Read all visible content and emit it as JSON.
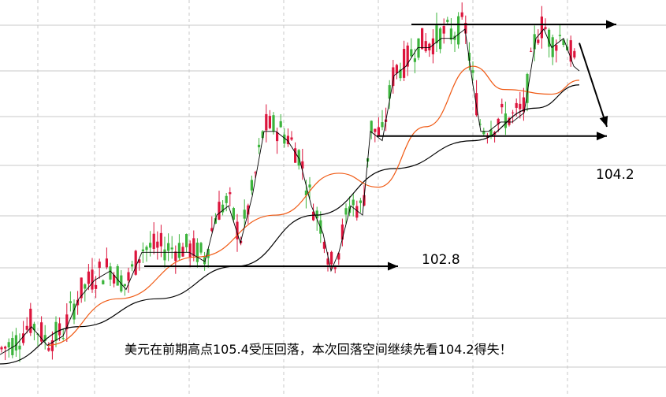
{
  "chart_data": {
    "type": "candlestick",
    "title": "",
    "xlabel": "",
    "ylabel": "",
    "ylim": [
      101.5,
      106.0
    ],
    "grid": true,
    "annotations": [
      {
        "id": "level_104_2",
        "text": "104.2"
      },
      {
        "id": "level_102_8",
        "text": "102.8"
      },
      {
        "id": "caption",
        "text": "美元在前期高点105.4受压回落，本次回落空间继续先看104.2得失！"
      }
    ],
    "key_levels": {
      "previous_high": 105.4,
      "support": 104.2,
      "low": 102.8
    },
    "trend_lines": [
      {
        "name": "high_resistance",
        "from": [
          522,
          105.4
        ],
        "to": [
          782,
          105.4
        ]
      },
      {
        "name": "support_104_2",
        "from": [
          478,
          104.2
        ],
        "to": [
          770,
          104.2
        ]
      },
      {
        "name": "support_102_8",
        "from": [
          183,
          102.8
        ],
        "to": [
          505,
          102.8
        ]
      },
      {
        "name": "down_arrow",
        "from": [
          735,
          105.2
        ],
        "to": [
          770,
          104.3
        ]
      }
    ],
    "price_path": [
      [
        0,
        101.9
      ],
      [
        20,
        102.0
      ],
      [
        40,
        102.2
      ],
      [
        60,
        102.0
      ],
      [
        80,
        102.1
      ],
      [
        100,
        102.5
      ],
      [
        120,
        102.7
      ],
      [
        140,
        102.8
      ],
      [
        160,
        102.6
      ],
      [
        180,
        103.0
      ],
      [
        200,
        103.0
      ],
      [
        220,
        103.0
      ],
      [
        240,
        103.0
      ],
      [
        260,
        102.9
      ],
      [
        275,
        103.4
      ],
      [
        290,
        103.5
      ],
      [
        305,
        103.1
      ],
      [
        320,
        103.6
      ],
      [
        335,
        104.3
      ],
      [
        350,
        104.3
      ],
      [
        365,
        104.2
      ],
      [
        380,
        104.0
      ],
      [
        395,
        103.5
      ],
      [
        410,
        103.2
      ],
      [
        420,
        102.8
      ],
      [
        430,
        103.0
      ],
      [
        445,
        103.5
      ],
      [
        460,
        103.4
      ],
      [
        470,
        104.3
      ],
      [
        485,
        104.2
      ],
      [
        500,
        104.9
      ],
      [
        515,
        105.0
      ],
      [
        530,
        105.2
      ],
      [
        545,
        105.2
      ],
      [
        560,
        105.3
      ],
      [
        575,
        105.3
      ],
      [
        590,
        105.4
      ],
      [
        600,
        104.8
      ],
      [
        610,
        104.3
      ],
      [
        620,
        104.3
      ],
      [
        635,
        104.4
      ],
      [
        650,
        104.4
      ],
      [
        665,
        104.5
      ],
      [
        680,
        105.3
      ],
      [
        690,
        105.4
      ],
      [
        700,
        105.2
      ],
      [
        715,
        105.3
      ],
      [
        728,
        105.0
      ],
      [
        735,
        104.95
      ]
    ],
    "moving_averages": [
      {
        "name": "ma_short",
        "color": "#000000",
        "points": [
          [
            0,
            101.75
          ],
          [
            100,
            102.15
          ],
          [
            200,
            102.45
          ],
          [
            300,
            102.8
          ],
          [
            400,
            103.35
          ],
          [
            500,
            103.85
          ],
          [
            600,
            104.15
          ],
          [
            680,
            104.5
          ],
          [
            735,
            104.75
          ]
        ]
      },
      {
        "name": "ma_mid",
        "color": "#f05a14",
        "points": [
          [
            60,
            101.95
          ],
          [
            150,
            102.45
          ],
          [
            250,
            102.9
          ],
          [
            350,
            103.35
          ],
          [
            430,
            103.8
          ],
          [
            480,
            103.65
          ],
          [
            540,
            104.3
          ],
          [
            600,
            104.95
          ],
          [
            640,
            104.7
          ],
          [
            700,
            104.65
          ],
          [
            735,
            104.8
          ]
        ]
      }
    ],
    "colors": {
      "up": "#dc143c",
      "down": "#3cb43c",
      "grid": "#c8c8c8",
      "arrow": "#000000"
    }
  }
}
